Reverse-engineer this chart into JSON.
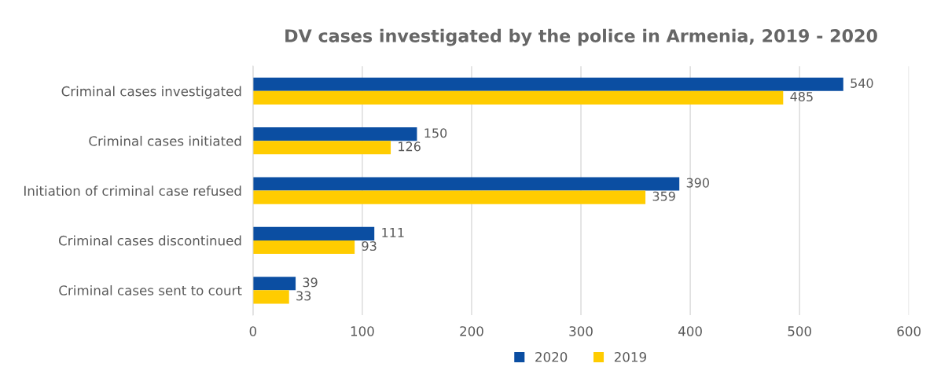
{
  "chart_data": {
    "type": "bar",
    "orientation": "horizontal",
    "title": "DV cases investigated by the police in Armenia, 2019 - 2020",
    "categories": [
      "Criminal cases investigated",
      "Criminal cases initiated",
      "Initiation of criminal case refused",
      "Criminal cases discontinued",
      "Criminal cases sent to court"
    ],
    "series": [
      {
        "name": "2020",
        "color": "#0b4ea2",
        "values": [
          540,
          150,
          390,
          111,
          39
        ]
      },
      {
        "name": "2019",
        "color": "#ffcc00",
        "values": [
          485,
          126,
          359,
          93,
          33
        ]
      }
    ],
    "xlim": [
      0,
      600
    ],
    "xticks": [
      0,
      100,
      200,
      300,
      400,
      500,
      600
    ],
    "grid": "x",
    "legend": "bottom",
    "data_labels": true
  }
}
